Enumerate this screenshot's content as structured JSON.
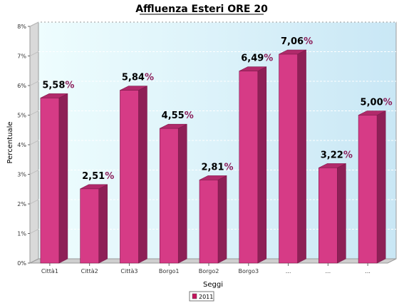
{
  "chart_data": {
    "type": "bar",
    "title": "Affluenza Esteri ORE 20",
    "xlabel": "Seggi",
    "ylabel": "Percentuale",
    "categories": [
      "Città1",
      "Città2",
      "Città3",
      "Borgo1",
      "Borgo2",
      "Borgo3",
      "...",
      "...",
      "..."
    ],
    "series": [
      {
        "name": "2011",
        "values": [
          5.58,
          2.51,
          5.84,
          4.55,
          2.81,
          6.49,
          7.06,
          3.22,
          5.0
        ],
        "labels": [
          "5,58%",
          "2,51%",
          "5,84%",
          "4,55%",
          "2,81%",
          "6,49%",
          "7,06%",
          "3,22%",
          "5,00%"
        ]
      }
    ],
    "ylim": [
      0,
      8
    ],
    "yticks": [
      "0%",
      "1%",
      "2%",
      "3%",
      "4%",
      "5%",
      "6%",
      "7%",
      "8%"
    ],
    "grid": true,
    "legend_position": "bottom-center",
    "colors": {
      "bar_front": "#d63b86",
      "bar_side": "#8e2057",
      "bar_top": "#b12a6b",
      "bar_outline": "#7d1a4b",
      "label": "#000000",
      "label_overlap": "#8b1e5a",
      "plot_bg_left": "#eefdfe",
      "plot_bg_right": "#c9e7f5",
      "legend_swatch": "#c4145c"
    }
  }
}
